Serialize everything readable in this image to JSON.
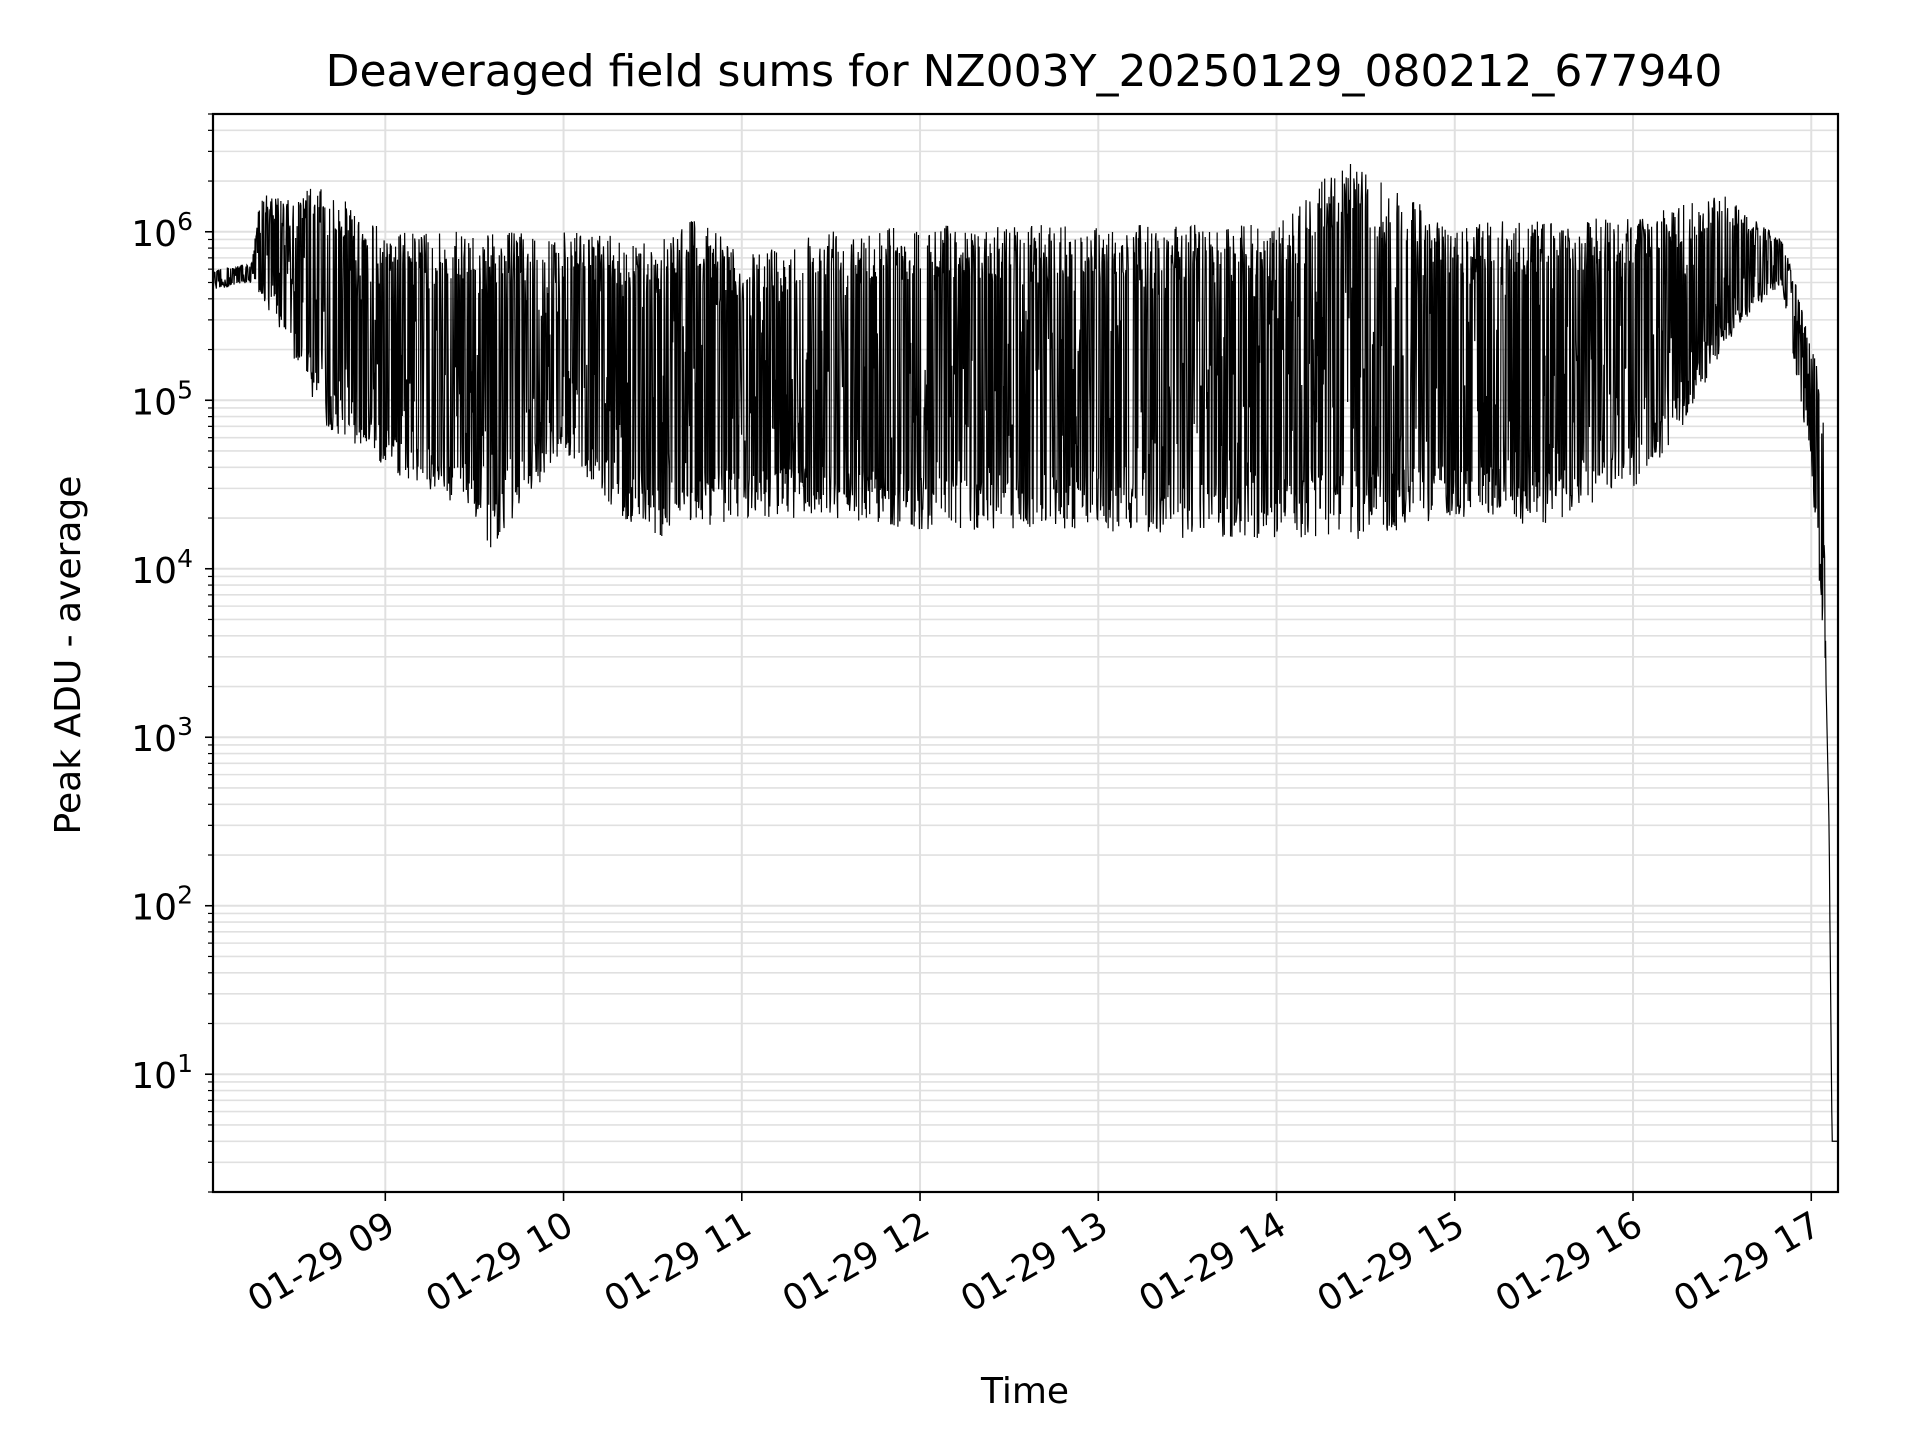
{
  "chart_data": {
    "type": "line",
    "title": "Deaveraged field sums for NZ003Y_20250129_080212_677940",
    "xlabel": "Time",
    "ylabel": "Peak ADU - average",
    "yscale": "log",
    "ylim": [
      2,
      5000000
    ],
    "xlim": [
      "2025-01-29 08:02",
      "2025-01-29 17:09"
    ],
    "grid": true,
    "line_color": "#000000",
    "grid_color": "#e0e0e0",
    "x_ticks": [
      {
        "value": "2025-01-29 09:00",
        "label": "01-29 09"
      },
      {
        "value": "2025-01-29 10:00",
        "label": "01-29 10"
      },
      {
        "value": "2025-01-29 11:00",
        "label": "01-29 11"
      },
      {
        "value": "2025-01-29 12:00",
        "label": "01-29 12"
      },
      {
        "value": "2025-01-29 13:00",
        "label": "01-29 13"
      },
      {
        "value": "2025-01-29 14:00",
        "label": "01-29 14"
      },
      {
        "value": "2025-01-29 15:00",
        "label": "01-29 15"
      },
      {
        "value": "2025-01-29 16:00",
        "label": "01-29 16"
      },
      {
        "value": "2025-01-29 17:00",
        "label": "01-29 17"
      }
    ],
    "y_ticks": [
      {
        "value": 10,
        "base": "10",
        "exp": "1"
      },
      {
        "value": 100,
        "base": "10",
        "exp": "2"
      },
      {
        "value": 1000,
        "base": "10",
        "exp": "3"
      },
      {
        "value": 10000,
        "base": "10",
        "exp": "4"
      },
      {
        "value": 100000,
        "base": "10",
        "exp": "5"
      },
      {
        "value": 1000000,
        "base": "10",
        "exp": "6"
      }
    ],
    "series": [
      {
        "upper_envelope": [
          [
            "2025-01-29 08:02",
            600000
          ],
          [
            "2025-01-29 08:15",
            650000
          ],
          [
            "2025-01-29 08:18",
            1700000
          ],
          [
            "2025-01-29 08:30",
            1500000
          ],
          [
            "2025-01-29 08:35",
            1900000
          ],
          [
            "2025-01-29 08:45",
            1600000
          ],
          [
            "2025-01-29 09:00",
            1000000
          ],
          [
            "2025-01-29 09:30",
            1000000
          ],
          [
            "2025-01-29 10:00",
            1000000
          ],
          [
            "2025-01-29 10:30",
            900000
          ],
          [
            "2025-01-29 10:45",
            1300000
          ],
          [
            "2025-01-29 11:00",
            700000
          ],
          [
            "2025-01-29 11:30",
            1100000
          ],
          [
            "2025-01-29 12:00",
            1100000
          ],
          [
            "2025-01-29 13:00",
            1100000
          ],
          [
            "2025-01-29 14:00",
            1100000
          ],
          [
            "2025-01-29 14:23",
            2700000
          ],
          [
            "2025-01-29 15:00",
            1100000
          ],
          [
            "2025-01-29 15:30",
            1200000
          ],
          [
            "2025-01-29 16:00",
            1200000
          ],
          [
            "2025-01-29 16:30",
            1700000
          ],
          [
            "2025-01-29 16:50",
            900000
          ],
          [
            "2025-01-29 16:55",
            500000
          ],
          [
            "2025-01-29 17:00",
            200000
          ],
          [
            "2025-01-29 17:02",
            200000
          ],
          [
            "2025-01-29 17:04",
            80000
          ],
          [
            "2025-01-29 17:05",
            2000
          ],
          [
            "2025-01-29 17:06",
            300
          ],
          [
            "2025-01-29 17:07",
            4
          ],
          [
            "2025-01-29 17:09",
            4
          ]
        ],
        "lower_envelope": [
          [
            "2025-01-29 08:02",
            450000
          ],
          [
            "2025-01-29 08:15",
            500000
          ],
          [
            "2025-01-29 08:25",
            250000
          ],
          [
            "2025-01-29 08:40",
            70000
          ],
          [
            "2025-01-29 09:00",
            40000
          ],
          [
            "2025-01-29 09:30",
            20000
          ],
          [
            "2025-01-29 09:35",
            13000
          ],
          [
            "2025-01-29 10:00",
            50000
          ],
          [
            "2025-01-29 10:20",
            20000
          ],
          [
            "2025-01-29 10:30",
            15000
          ],
          [
            "2025-01-29 11:00",
            20000
          ],
          [
            "2025-01-29 11:30",
            20000
          ],
          [
            "2025-01-29 12:00",
            17000
          ],
          [
            "2025-01-29 13:00",
            17000
          ],
          [
            "2025-01-29 13:30",
            15000
          ],
          [
            "2025-01-29 14:00",
            15000
          ],
          [
            "2025-01-29 14:30",
            15000
          ],
          [
            "2025-01-29 15:00",
            20000
          ],
          [
            "2025-01-29 15:30",
            18000
          ],
          [
            "2025-01-29 16:00",
            30000
          ],
          [
            "2025-01-29 16:15",
            60000
          ],
          [
            "2025-01-29 16:30",
            200000
          ],
          [
            "2025-01-29 16:50",
            500000
          ],
          [
            "2025-01-29 17:00",
            40000
          ],
          [
            "2025-01-29 17:05",
            2000
          ],
          [
            "2025-01-29 17:06",
            250
          ],
          [
            "2025-01-29 17:07",
            4
          ],
          [
            "2025-01-29 17:09",
            4
          ]
        ]
      }
    ]
  }
}
